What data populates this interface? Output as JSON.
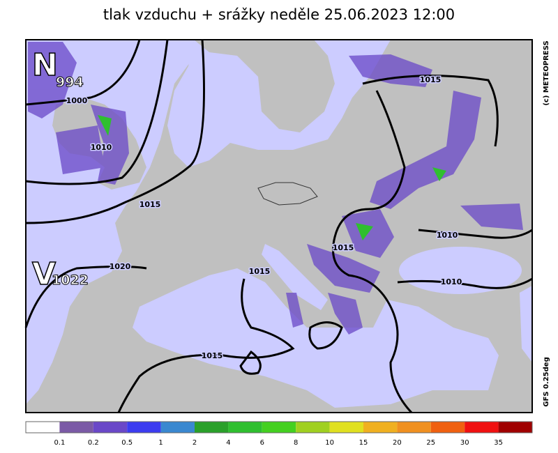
{
  "header": {
    "title": "tlak vzduchu + srážky  neděle 25.06.2023 12:00"
  },
  "credit": "(c) METEOPRESS",
  "model": "GFS  0.25deg",
  "pressure_centers": [
    {
      "letter": "N",
      "value": "994"
    },
    {
      "letter": "V",
      "value": "1022"
    }
  ],
  "isobar_labels": [
    "1000",
    "1010",
    "1015",
    "1020",
    "1015",
    "1015",
    "1015",
    "1015",
    "1010",
    "1010"
  ],
  "legend": {
    "colors": [
      "#ffffff",
      "#7b5aa6",
      "#6a48c8",
      "#3c3cf0",
      "#3a88d0",
      "#2aa02a",
      "#2fbf2f",
      "#44d020",
      "#a0d020",
      "#e0e020",
      "#f0b020",
      "#f09020",
      "#f06010",
      "#f01010",
      "#a00000"
    ],
    "labels": [
      "0.1",
      "0.2",
      "0.5",
      "1",
      "2",
      "4",
      "6",
      "8",
      "10",
      "15",
      "20",
      "25",
      "30",
      "35"
    ]
  }
}
